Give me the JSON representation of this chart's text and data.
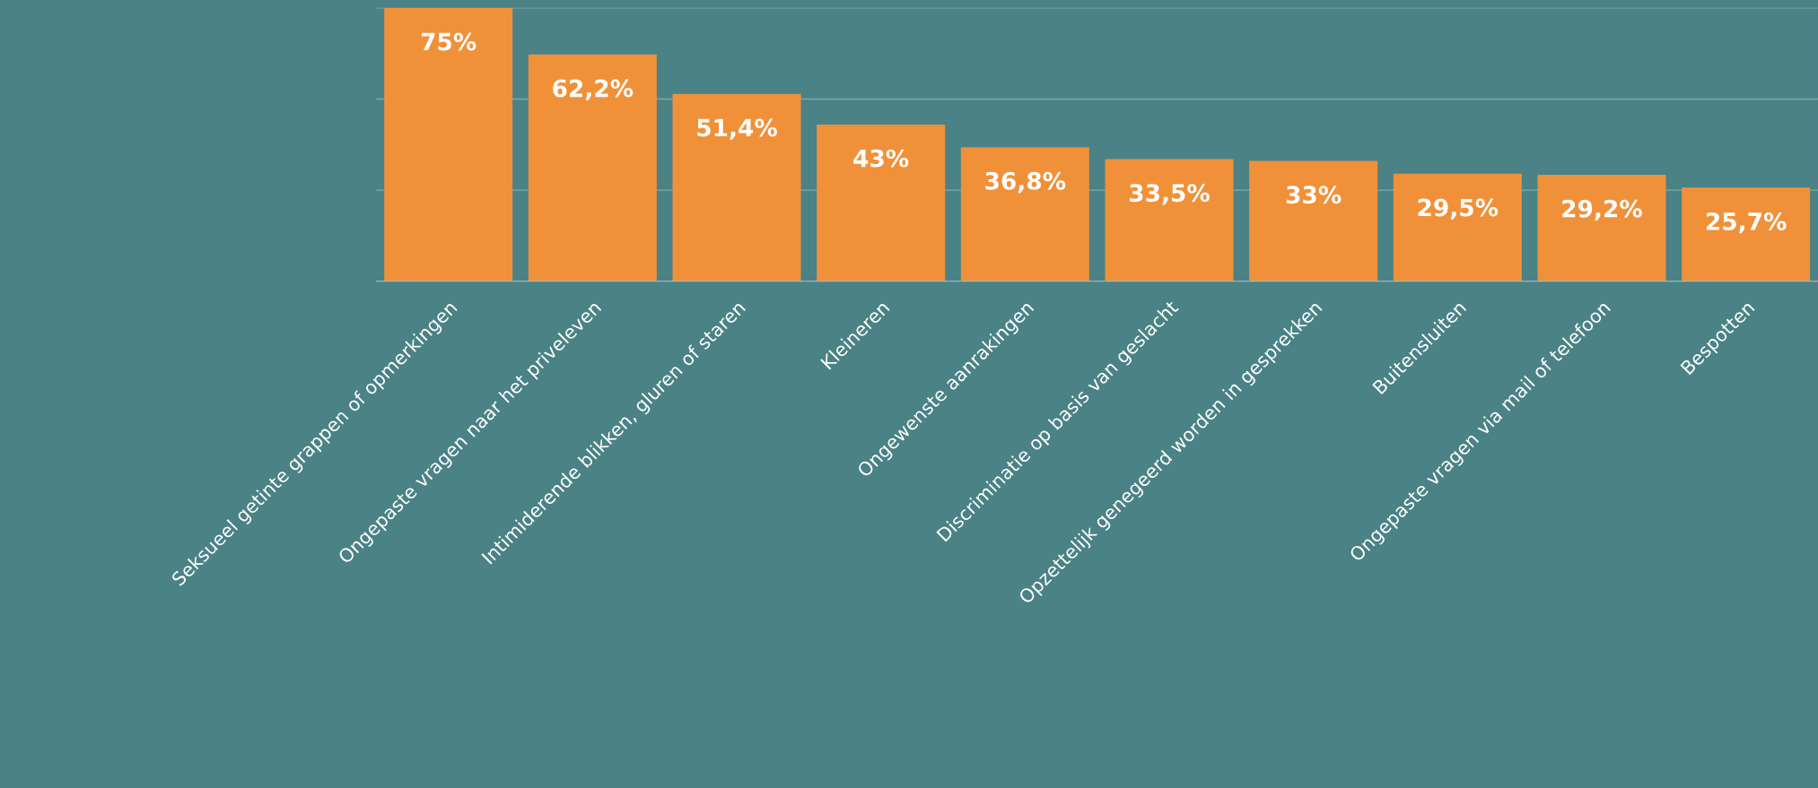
{
  "chart_data": {
    "type": "bar",
    "categories": [
      "Seksueel getinte grappen of opmerkingen",
      "Ongepaste vragen naar het priveleven",
      "Intimiderende blikken, gluren of staren",
      "Kleineren",
      "Ongewenste aanrakingen",
      "Discriminatie op basis van geslacht",
      "Opzettelijk genegeerd worden in gesprekken",
      "Buitensluiten",
      "Ongepaste vragen via mail of telefoon",
      "Bespotten"
    ],
    "values": [
      75,
      62.2,
      51.4,
      43,
      36.8,
      33.5,
      33,
      29.5,
      29.2,
      25.7
    ],
    "value_labels": [
      "75%",
      "62,2%",
      "51,4%",
      "43%",
      "36,8%",
      "33,5%",
      "33%",
      "29,5%",
      "29,2%",
      "25,7%"
    ],
    "color": "#f0913a",
    "ylim": [
      0,
      75
    ],
    "yticks": [
      {
        "value": 0,
        "label": null
      },
      {
        "value": 25,
        "label": null
      },
      {
        "value": 50,
        "label": null
      },
      {
        "value": 75,
        "label": null
      }
    ],
    "tick_labels": "x",
    "grid": "y"
  }
}
